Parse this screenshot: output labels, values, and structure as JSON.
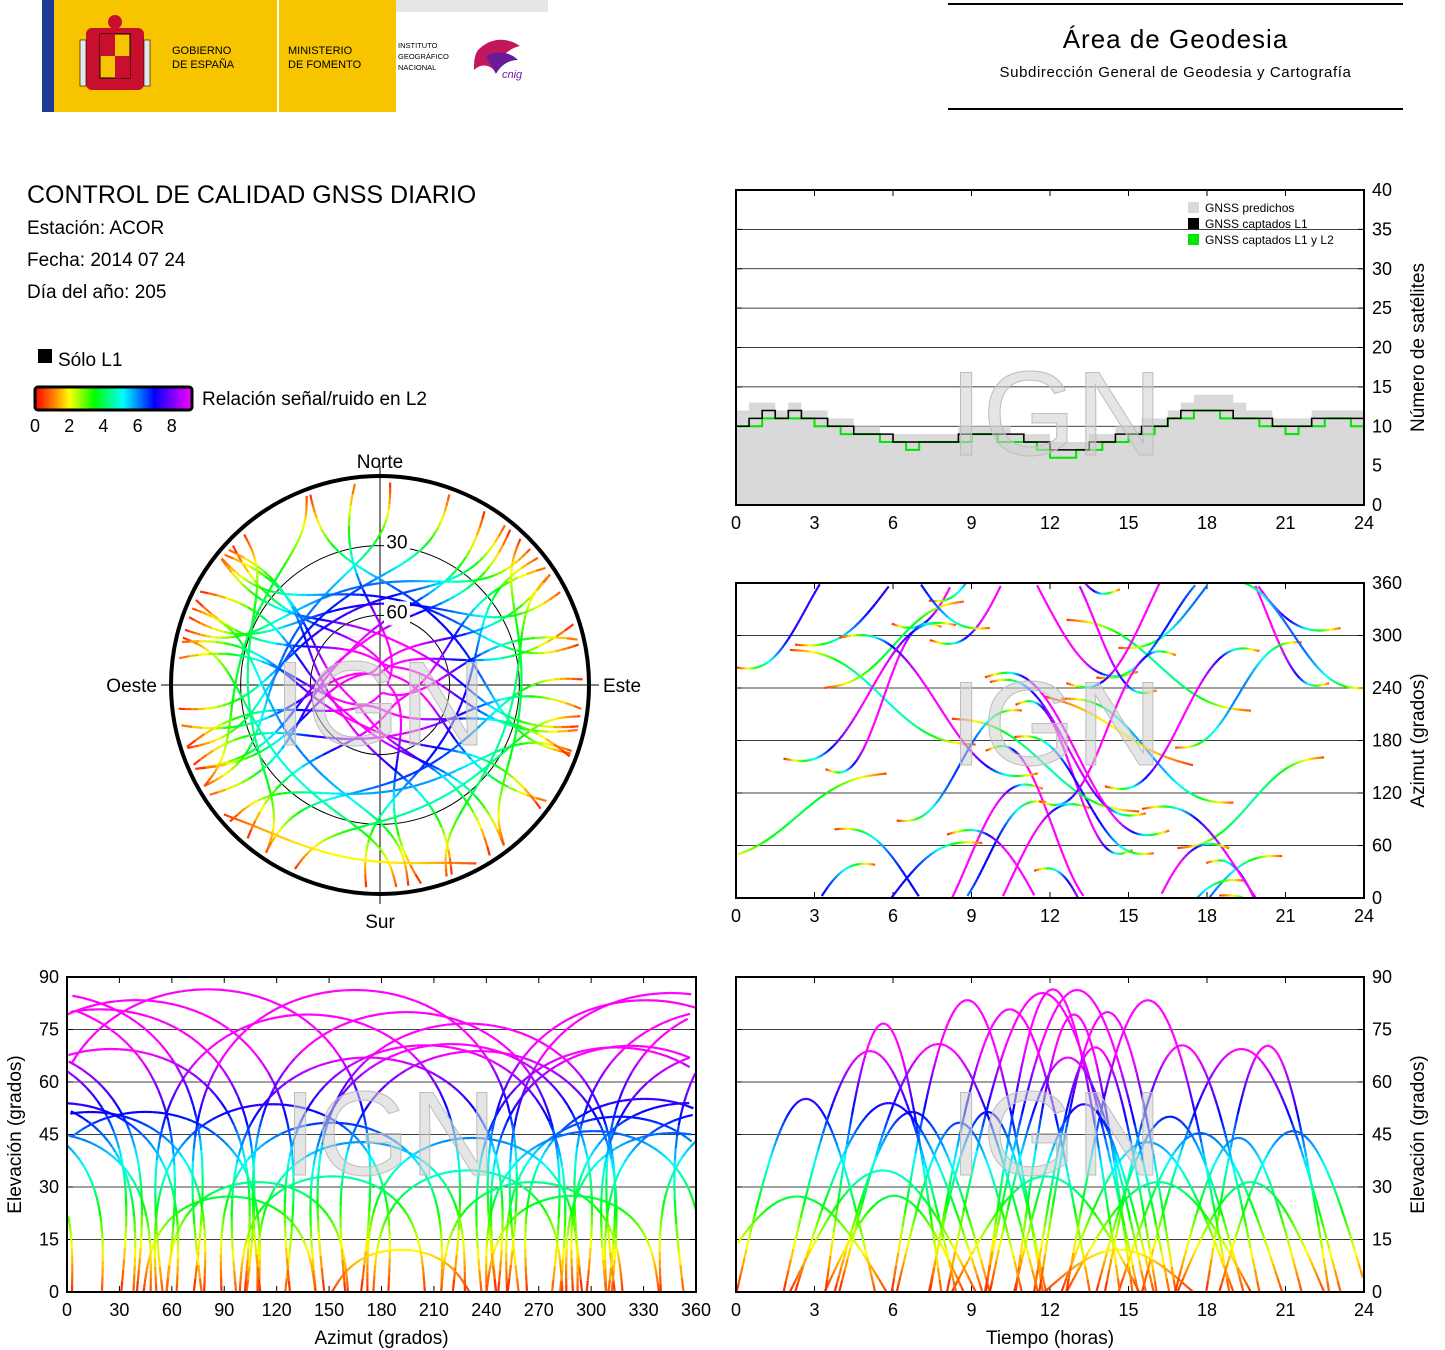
{
  "header": {
    "gov_line1": "GOBIERNO",
    "gov_line2": "DE ESPAÑA",
    "ministry_line1": "MINISTERIO",
    "ministry_line2": "DE FOMENTO",
    "ign_line1": "INSTITUTO",
    "ign_line2": "GEOGRÁFICO",
    "ign_line3": "NACIONAL",
    "cnig_logo_text": "cnig",
    "area_title": "Área de Geodesia",
    "area_subtitle": "Subdirección General de Geodesia y Cartografía"
  },
  "report": {
    "title": "CONTROL DE CALIDAD GNSS DIARIO",
    "station": "Estación: ACOR",
    "date": "Fecha: 2014 07 24",
    "doy": "Día del año: 205",
    "legend_l1_only": "Sólo L1",
    "snr_label": "Relación señal/ruido en L2",
    "snr_ticks": [
      "0",
      "2",
      "4",
      "6",
      "8"
    ],
    "watermark": "IGN"
  },
  "colors": {
    "snr_scale": [
      "#ff0000",
      "#ffff00",
      "#00ff00",
      "#00ffff",
      "#0000ff",
      "#ff00ff"
    ],
    "predicted": "#d9d9d9",
    "l1": "#000000",
    "l1l2": "#00e600"
  },
  "chart_data": [
    {
      "id": "skyplot",
      "type": "scatter",
      "cardinals": {
        "n": "Norte",
        "s": "Sur",
        "e": "Este",
        "w": "Oeste"
      },
      "ring_labels": [
        "30",
        "60"
      ],
      "rings_elevation": [
        30,
        60
      ],
      "note": ""
    },
    {
      "id": "satcount",
      "type": "area",
      "ylabel": "Número de satélites",
      "xlim": [
        0,
        24
      ],
      "ylim": [
        0,
        40
      ],
      "xticks": [
        "0",
        "3",
        "6",
        "9",
        "12",
        "15",
        "18",
        "21",
        "24"
      ],
      "yticks": [
        "0",
        "5",
        "10",
        "15",
        "20",
        "25",
        "30",
        "35",
        "40"
      ],
      "grid": true,
      "legend": [
        "GNSS predichos",
        "GNSS captados L1",
        "GNSS captados L1 y L2"
      ],
      "legend_position": "top-right",
      "x": [
        0,
        0.5,
        1,
        1.5,
        2,
        2.5,
        3,
        3.5,
        4,
        4.5,
        5,
        5.5,
        6,
        6.5,
        7,
        7.5,
        8,
        8.5,
        9,
        9.5,
        10,
        10.5,
        11,
        11.5,
        12,
        12.5,
        13,
        13.5,
        14,
        14.5,
        15,
        15.5,
        16,
        16.5,
        17,
        17.5,
        18,
        18.5,
        19,
        19.5,
        20,
        20.5,
        21,
        21.5,
        22,
        22.5,
        23,
        23.5,
        24
      ],
      "series": [
        {
          "name": "GNSS predichos",
          "values": [
            12,
            13,
            13,
            12,
            13,
            12,
            12,
            11,
            11,
            10,
            10,
            9,
            9,
            9,
            9,
            9,
            9,
            10,
            10,
            10,
            10,
            9,
            9,
            9,
            8,
            8,
            8,
            9,
            9,
            10,
            10,
            11,
            11,
            12,
            13,
            14,
            14,
            14,
            13,
            12,
            12,
            11,
            11,
            11,
            12,
            12,
            12,
            12,
            11
          ]
        },
        {
          "name": "GNSS captados L1",
          "values": [
            10,
            11,
            12,
            11,
            12,
            11,
            11,
            10,
            10,
            9,
            9,
            9,
            8,
            8,
            8,
            8,
            8,
            9,
            9,
            9,
            9,
            9,
            8,
            8,
            7,
            7,
            7,
            8,
            8,
            9,
            9,
            10,
            10,
            11,
            12,
            12,
            12,
            12,
            11,
            11,
            11,
            10,
            10,
            10,
            11,
            11,
            11,
            11,
            10
          ]
        },
        {
          "name": "GNSS captados L1 y L2",
          "values": [
            10,
            10,
            11,
            11,
            11,
            11,
            10,
            10,
            9,
            9,
            9,
            8,
            8,
            7,
            8,
            8,
            8,
            8,
            9,
            9,
            8,
            8,
            8,
            7,
            6,
            6,
            7,
            7,
            8,
            8,
            9,
            9,
            10,
            11,
            11,
            12,
            12,
            11,
            11,
            11,
            10,
            10,
            9,
            10,
            10,
            11,
            11,
            10,
            10
          ]
        }
      ]
    },
    {
      "id": "azimuth_time",
      "type": "scatter",
      "ylabel": "Azimut (grados)",
      "xlim": [
        0,
        24
      ],
      "ylim": [
        0,
        360
      ],
      "xticks": [
        "0",
        "3",
        "6",
        "9",
        "12",
        "15",
        "18",
        "21",
        "24"
      ],
      "yticks": [
        "0",
        "60",
        "120",
        "180",
        "240",
        "300",
        "360"
      ],
      "grid": true
    },
    {
      "id": "elev_azimuth",
      "type": "scatter",
      "xlabel": "Azimut (grados)",
      "ylabel": "Elevación (grados)",
      "xlim": [
        0,
        360
      ],
      "ylim": [
        0,
        90
      ],
      "xticks": [
        "0",
        "30",
        "60",
        "90",
        "120",
        "150",
        "180",
        "210",
        "240",
        "270",
        "300",
        "330",
        "360"
      ],
      "yticks": [
        "0",
        "15",
        "30",
        "45",
        "60",
        "75",
        "90"
      ],
      "grid": true
    },
    {
      "id": "elev_time",
      "type": "scatter",
      "xlabel": "Tiempo (horas)",
      "ylabel": "Elevación (grados)",
      "xlim": [
        0,
        24
      ],
      "ylim": [
        0,
        90
      ],
      "xticks": [
        "0",
        "3",
        "6",
        "9",
        "12",
        "15",
        "18",
        "21",
        "24"
      ],
      "yticks": [
        "0",
        "15",
        "30",
        "45",
        "60",
        "75",
        "90"
      ],
      "grid": true
    }
  ]
}
